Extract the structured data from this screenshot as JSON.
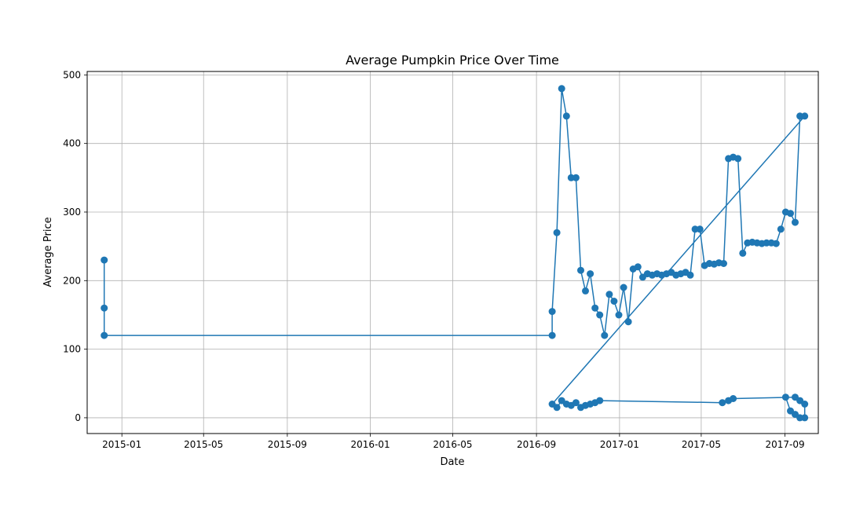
{
  "chart_data": {
    "type": "line",
    "title": "Average Pumpkin Price Over Time",
    "xlabel": "Date",
    "ylabel": "Average Price",
    "x_ticks": [
      "2015-01",
      "2015-05",
      "2015-09",
      "2016-01",
      "2016-05",
      "2016-09",
      "2017-01",
      "2017-05",
      "2017-09"
    ],
    "y_ticks": [
      "0",
      "100",
      "200",
      "300",
      "400",
      "500"
    ],
    "xlim": [
      "2014-11-11",
      "2017-10-20"
    ],
    "ylim": [
      -23,
      505
    ],
    "grid": true,
    "legend": "none",
    "marker": "circle",
    "color": "#1f77b4",
    "series": [
      {
        "x": [
          "2014-12-06",
          "2014-12-06",
          "2014-12-06",
          "2016-09-24",
          "2016-09-24",
          "2016-10-01",
          "2016-10-08",
          "2016-10-15",
          "2016-10-22",
          "2016-10-29",
          "2016-11-05",
          "2016-11-12",
          "2016-11-19",
          "2016-11-26",
          "2016-12-03",
          "2016-12-10",
          "2016-12-17",
          "2016-12-24",
          "2016-12-31",
          "2017-01-07",
          "2017-01-14",
          "2017-01-21",
          "2017-01-28",
          "2017-02-04",
          "2017-02-11",
          "2017-02-18",
          "2017-02-25",
          "2017-03-04",
          "2017-03-11",
          "2017-03-18",
          "2017-03-25",
          "2017-04-01",
          "2017-04-08",
          "2017-04-15",
          "2017-04-22",
          "2017-04-29",
          "2017-05-06",
          "2017-05-13",
          "2017-05-20",
          "2017-05-27",
          "2017-06-03",
          "2017-06-10",
          "2017-06-17",
          "2017-06-24",
          "2017-07-01",
          "2017-07-08",
          "2017-07-15",
          "2017-07-22",
          "2017-07-29",
          "2017-08-05",
          "2017-08-12",
          "2017-08-19",
          "2017-08-26",
          "2017-09-02",
          "2017-09-09",
          "2017-09-16",
          "2017-09-23",
          "2017-09-30",
          "2016-09-24",
          "2016-10-01",
          "2016-10-08",
          "2016-10-15",
          "2016-10-22",
          "2016-10-29",
          "2016-11-05",
          "2016-11-12",
          "2016-11-19",
          "2016-11-26",
          "2016-12-03",
          "2017-06-01",
          "2017-06-10",
          "2017-06-17",
          "2017-09-16",
          "2017-09-23",
          "2017-09-30",
          "2017-09-30",
          "2017-09-23",
          "2017-09-16",
          "2017-09-09",
          "2017-09-02"
        ],
        "y": [
          230,
          160,
          120,
          120,
          155,
          270,
          480,
          440,
          350,
          350,
          215,
          185,
          210,
          160,
          150,
          120,
          180,
          170,
          150,
          190,
          140,
          217,
          220,
          205,
          210,
          208,
          210,
          208,
          210,
          212,
          208,
          210,
          212,
          208,
          275,
          275,
          222,
          225,
          224,
          226,
          225,
          378,
          380,
          378,
          240,
          255,
          256,
          255,
          254,
          255,
          255,
          254,
          275,
          300,
          298,
          285,
          440,
          440,
          20,
          15,
          25,
          20,
          18,
          22,
          15,
          18,
          20,
          22,
          25,
          22,
          25,
          28,
          30,
          25,
          20,
          0,
          0,
          5,
          10,
          30
        ]
      }
    ]
  }
}
